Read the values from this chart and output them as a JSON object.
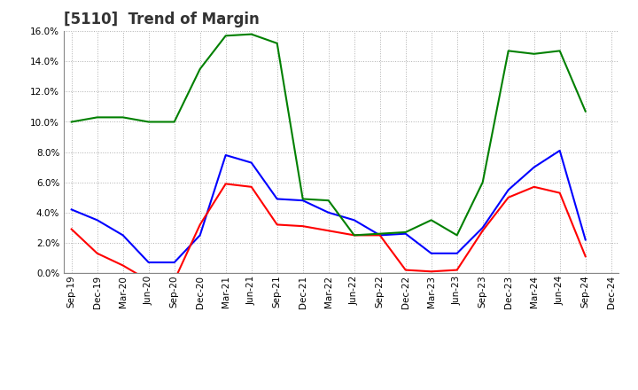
{
  "title": "[5110]  Trend of Margin",
  "x_labels": [
    "Sep-19",
    "Dec-19",
    "Mar-20",
    "Jun-20",
    "Sep-20",
    "Dec-20",
    "Mar-21",
    "Jun-21",
    "Sep-21",
    "Dec-21",
    "Mar-22",
    "Jun-22",
    "Sep-22",
    "Dec-22",
    "Mar-23",
    "Jun-23",
    "Sep-23",
    "Dec-23",
    "Mar-24",
    "Jun-24",
    "Sep-24",
    "Dec-24"
  ],
  "ordinary_income": [
    4.2,
    3.5,
    2.5,
    0.7,
    0.7,
    2.5,
    7.8,
    7.3,
    4.9,
    4.8,
    4.0,
    3.5,
    2.5,
    2.6,
    1.3,
    1.3,
    3.0,
    5.5,
    7.0,
    8.1,
    2.2,
    null
  ],
  "net_income": [
    2.9,
    1.3,
    0.5,
    -0.5,
    -0.5,
    3.2,
    5.9,
    5.7,
    3.2,
    3.1,
    2.8,
    2.5,
    2.5,
    0.2,
    0.1,
    0.2,
    2.8,
    5.0,
    5.7,
    5.3,
    1.1,
    null
  ],
  "operating_cashflow": [
    10.0,
    10.3,
    10.3,
    10.0,
    10.0,
    13.5,
    15.7,
    15.8,
    15.2,
    4.9,
    4.8,
    2.5,
    2.6,
    2.7,
    3.5,
    2.5,
    6.0,
    14.7,
    14.5,
    14.7,
    10.7,
    null
  ],
  "ylim_min": 0.0,
  "ylim_max": 0.16,
  "yticks": [
    0.0,
    0.02,
    0.04,
    0.06,
    0.08,
    0.1,
    0.12,
    0.14,
    0.16
  ],
  "color_ordinary": "#0000ff",
  "color_net": "#ff0000",
  "color_cashflow": "#008000",
  "background_color": "#ffffff",
  "grid_color": "#b0b0b0",
  "title_color": "#333333",
  "title_fontsize": 12,
  "linewidth": 1.5,
  "tick_fontsize": 7.5,
  "legend_fontsize": 9
}
